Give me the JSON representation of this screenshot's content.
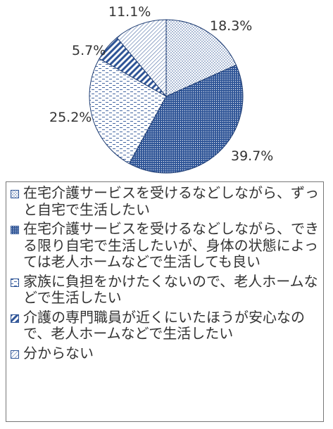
{
  "chart_data": {
    "type": "pie",
    "categories": [
      "在宅介護サービスを受けるなどしながら、ずっと自宅で生活したい",
      "在宅介護サービスを受けるなどしながら、できる限り自宅で生活したいが、身体の状態によっては老人ホームなどで生活しても良い",
      "家族に負担をかけたくないので、老人ホームなどで生活したい",
      "介護の専門職員が近くにいたほうが安心なので、老人ホームなどで生活したい",
      "分からない"
    ],
    "values": [
      18.3,
      39.7,
      25.2,
      5.7,
      11.1
    ],
    "labels": [
      "18.3%",
      "39.7%",
      "25.2%",
      "5.7%",
      "11.1%"
    ],
    "legend": "bottom",
    "colors": [
      "#2f5597",
      "#2f5597",
      "#2f5597",
      "#2f5597",
      "#2f5597"
    ],
    "patterns": [
      "dotted-light",
      "dotted-dense",
      "dashed",
      "diagonal-wide",
      "diagonal-fine"
    ]
  }
}
